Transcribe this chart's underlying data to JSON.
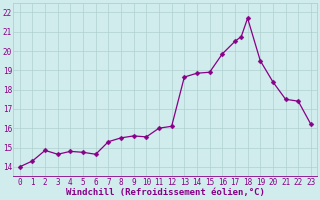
{
  "x": [
    0,
    1,
    2,
    3,
    4,
    5,
    6,
    7,
    8,
    9,
    10,
    11,
    12,
    13,
    14,
    15,
    16,
    17,
    17.5,
    18,
    19,
    20,
    21,
    22,
    23
  ],
  "y": [
    14.0,
    14.3,
    14.85,
    14.65,
    14.8,
    14.75,
    14.65,
    15.3,
    15.5,
    15.6,
    15.55,
    16.0,
    16.1,
    18.65,
    18.85,
    18.9,
    19.85,
    20.5,
    20.75,
    21.7,
    19.5,
    18.4,
    17.5,
    17.4,
    16.2
  ],
  "line_color": "#880088",
  "marker_color": "#880088",
  "bg_color": "#d0ecec",
  "grid_color": "#b0d0d0",
  "axis_color": "#880088",
  "xlabel": "Windchill (Refroidissement éolien,°C)",
  "xlim": [
    -0.5,
    23.5
  ],
  "ylim": [
    13.5,
    22.5
  ],
  "yticks": [
    14,
    15,
    16,
    17,
    18,
    19,
    20,
    21,
    22
  ],
  "xticks": [
    0,
    1,
    2,
    3,
    4,
    5,
    6,
    7,
    8,
    9,
    10,
    11,
    12,
    13,
    14,
    15,
    16,
    17,
    18,
    19,
    20,
    21,
    22,
    23
  ],
  "tick_label_fontsize": 5.5,
  "xlabel_fontsize": 6.5,
  "marker_size": 2.5,
  "line_width": 0.9
}
